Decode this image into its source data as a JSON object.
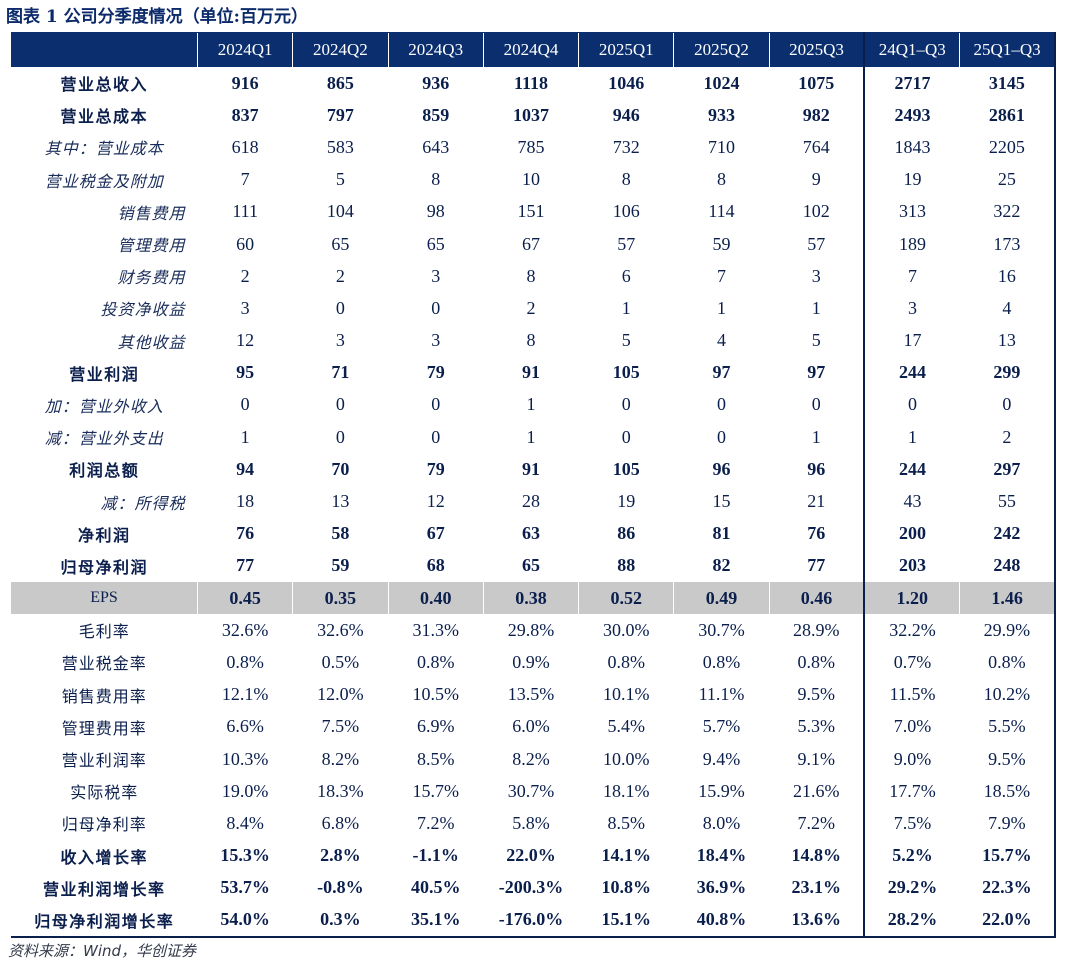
{
  "title": "图表 1   公司分季度情况（单位:百万元）",
  "columns": [
    "",
    "2024Q1",
    "2024Q2",
    "2024Q3",
    "2024Q4",
    "2025Q1",
    "2025Q2",
    "2025Q3",
    "24Q1–Q3",
    "25Q1–Q3"
  ],
  "rows": [
    {
      "label": "营业总收入",
      "style": "bold",
      "values": [
        "916",
        "865",
        "936",
        "1118",
        "1046",
        "1024",
        "1075",
        "2717",
        "3145"
      ]
    },
    {
      "label": "营业总成本",
      "style": "bold",
      "values": [
        "837",
        "797",
        "859",
        "1037",
        "946",
        "933",
        "982",
        "2493",
        "2861"
      ]
    },
    {
      "label": "其中：营业成本",
      "style": "it",
      "values": [
        "618",
        "583",
        "643",
        "785",
        "732",
        "710",
        "764",
        "1843",
        "2205"
      ]
    },
    {
      "label": "营业税金及附加",
      "style": "it",
      "values": [
        "7",
        "5",
        "8",
        "10",
        "8",
        "8",
        "9",
        "19",
        "25"
      ]
    },
    {
      "label": "销售费用",
      "style": "it ind2",
      "values": [
        "111",
        "104",
        "98",
        "151",
        "106",
        "114",
        "102",
        "313",
        "322"
      ]
    },
    {
      "label": "管理费用",
      "style": "it ind2",
      "values": [
        "60",
        "65",
        "65",
        "67",
        "57",
        "59",
        "57",
        "189",
        "173"
      ]
    },
    {
      "label": "财务费用",
      "style": "it ind2",
      "values": [
        "2",
        "2",
        "3",
        "8",
        "6",
        "7",
        "3",
        "7",
        "16"
      ]
    },
    {
      "label": "投资净收益",
      "style": "it ind2",
      "values": [
        "3",
        "0",
        "0",
        "2",
        "1",
        "1",
        "1",
        "3",
        "4"
      ]
    },
    {
      "label": "其他收益",
      "style": "it ind2",
      "values": [
        "12",
        "3",
        "3",
        "8",
        "5",
        "4",
        "5",
        "17",
        "13"
      ]
    },
    {
      "label": "营业利润",
      "style": "bold",
      "values": [
        "95",
        "71",
        "79",
        "91",
        "105",
        "97",
        "97",
        "244",
        "299"
      ]
    },
    {
      "label": "加：营业外收入",
      "style": "it",
      "values": [
        "0",
        "0",
        "0",
        "1",
        "0",
        "0",
        "0",
        "0",
        "0"
      ]
    },
    {
      "label": "减：营业外支出",
      "style": "it",
      "values": [
        "1",
        "0",
        "0",
        "1",
        "0",
        "0",
        "1",
        "1",
        "2"
      ]
    },
    {
      "label": "利润总额",
      "style": "bold",
      "values": [
        "94",
        "70",
        "79",
        "91",
        "105",
        "96",
        "96",
        "244",
        "297"
      ]
    },
    {
      "label": "减：所得税",
      "style": "it ind2",
      "values": [
        "18",
        "13",
        "12",
        "28",
        "19",
        "15",
        "21",
        "43",
        "55"
      ]
    },
    {
      "label": "净利润",
      "style": "bold",
      "values": [
        "76",
        "58",
        "67",
        "63",
        "86",
        "81",
        "76",
        "200",
        "242"
      ]
    },
    {
      "label": "归母净利润",
      "style": "bold",
      "values": [
        "77",
        "59",
        "68",
        "65",
        "88",
        "82",
        "77",
        "203",
        "248"
      ]
    },
    {
      "label": "EPS",
      "style": "eps",
      "values": [
        "0.45",
        "0.35",
        "0.40",
        "0.38",
        "0.52",
        "0.49",
        "0.46",
        "1.20",
        "1.46"
      ]
    },
    {
      "label": "毛利率",
      "style": "",
      "values": [
        "32.6%",
        "32.6%",
        "31.3%",
        "29.8%",
        "30.0%",
        "30.7%",
        "28.9%",
        "32.2%",
        "29.9%"
      ]
    },
    {
      "label": "营业税金率",
      "style": "",
      "values": [
        "0.8%",
        "0.5%",
        "0.8%",
        "0.9%",
        "0.8%",
        "0.8%",
        "0.8%",
        "0.7%",
        "0.8%"
      ]
    },
    {
      "label": "销售费用率",
      "style": "",
      "values": [
        "12.1%",
        "12.0%",
        "10.5%",
        "13.5%",
        "10.1%",
        "11.1%",
        "9.5%",
        "11.5%",
        "10.2%"
      ]
    },
    {
      "label": "管理费用率",
      "style": "",
      "values": [
        "6.6%",
        "7.5%",
        "6.9%",
        "6.0%",
        "5.4%",
        "5.7%",
        "5.3%",
        "7.0%",
        "5.5%"
      ]
    },
    {
      "label": "营业利润率",
      "style": "",
      "values": [
        "10.3%",
        "8.2%",
        "8.5%",
        "8.2%",
        "10.0%",
        "9.4%",
        "9.1%",
        "9.0%",
        "9.5%"
      ]
    },
    {
      "label": "实际税率",
      "style": "",
      "values": [
        "19.0%",
        "18.3%",
        "15.7%",
        "30.7%",
        "18.1%",
        "15.9%",
        "21.6%",
        "17.7%",
        "18.5%"
      ]
    },
    {
      "label": "归母净利率",
      "style": "",
      "values": [
        "8.4%",
        "6.8%",
        "7.2%",
        "5.8%",
        "8.5%",
        "8.0%",
        "7.2%",
        "7.5%",
        "7.9%"
      ]
    },
    {
      "label": "收入增长率",
      "style": "bold",
      "values": [
        "15.3%",
        "2.8%",
        "-1.1%",
        "22.0%",
        "14.1%",
        "18.4%",
        "14.8%",
        "5.2%",
        "15.7%"
      ]
    },
    {
      "label": "营业利润增长率",
      "style": "bold",
      "values": [
        "53.7%",
        "-0.8%",
        "40.5%",
        "-200.3%",
        "10.8%",
        "36.9%",
        "23.1%",
        "29.2%",
        "22.3%"
      ]
    },
    {
      "label": "归母净利润增长率",
      "style": "bold",
      "values": [
        "54.0%",
        "0.3%",
        "35.1%",
        "-176.0%",
        "15.1%",
        "40.8%",
        "13.6%",
        "28.2%",
        "22.0%"
      ]
    }
  ],
  "source": "资料来源：Wind，华创证券"
}
